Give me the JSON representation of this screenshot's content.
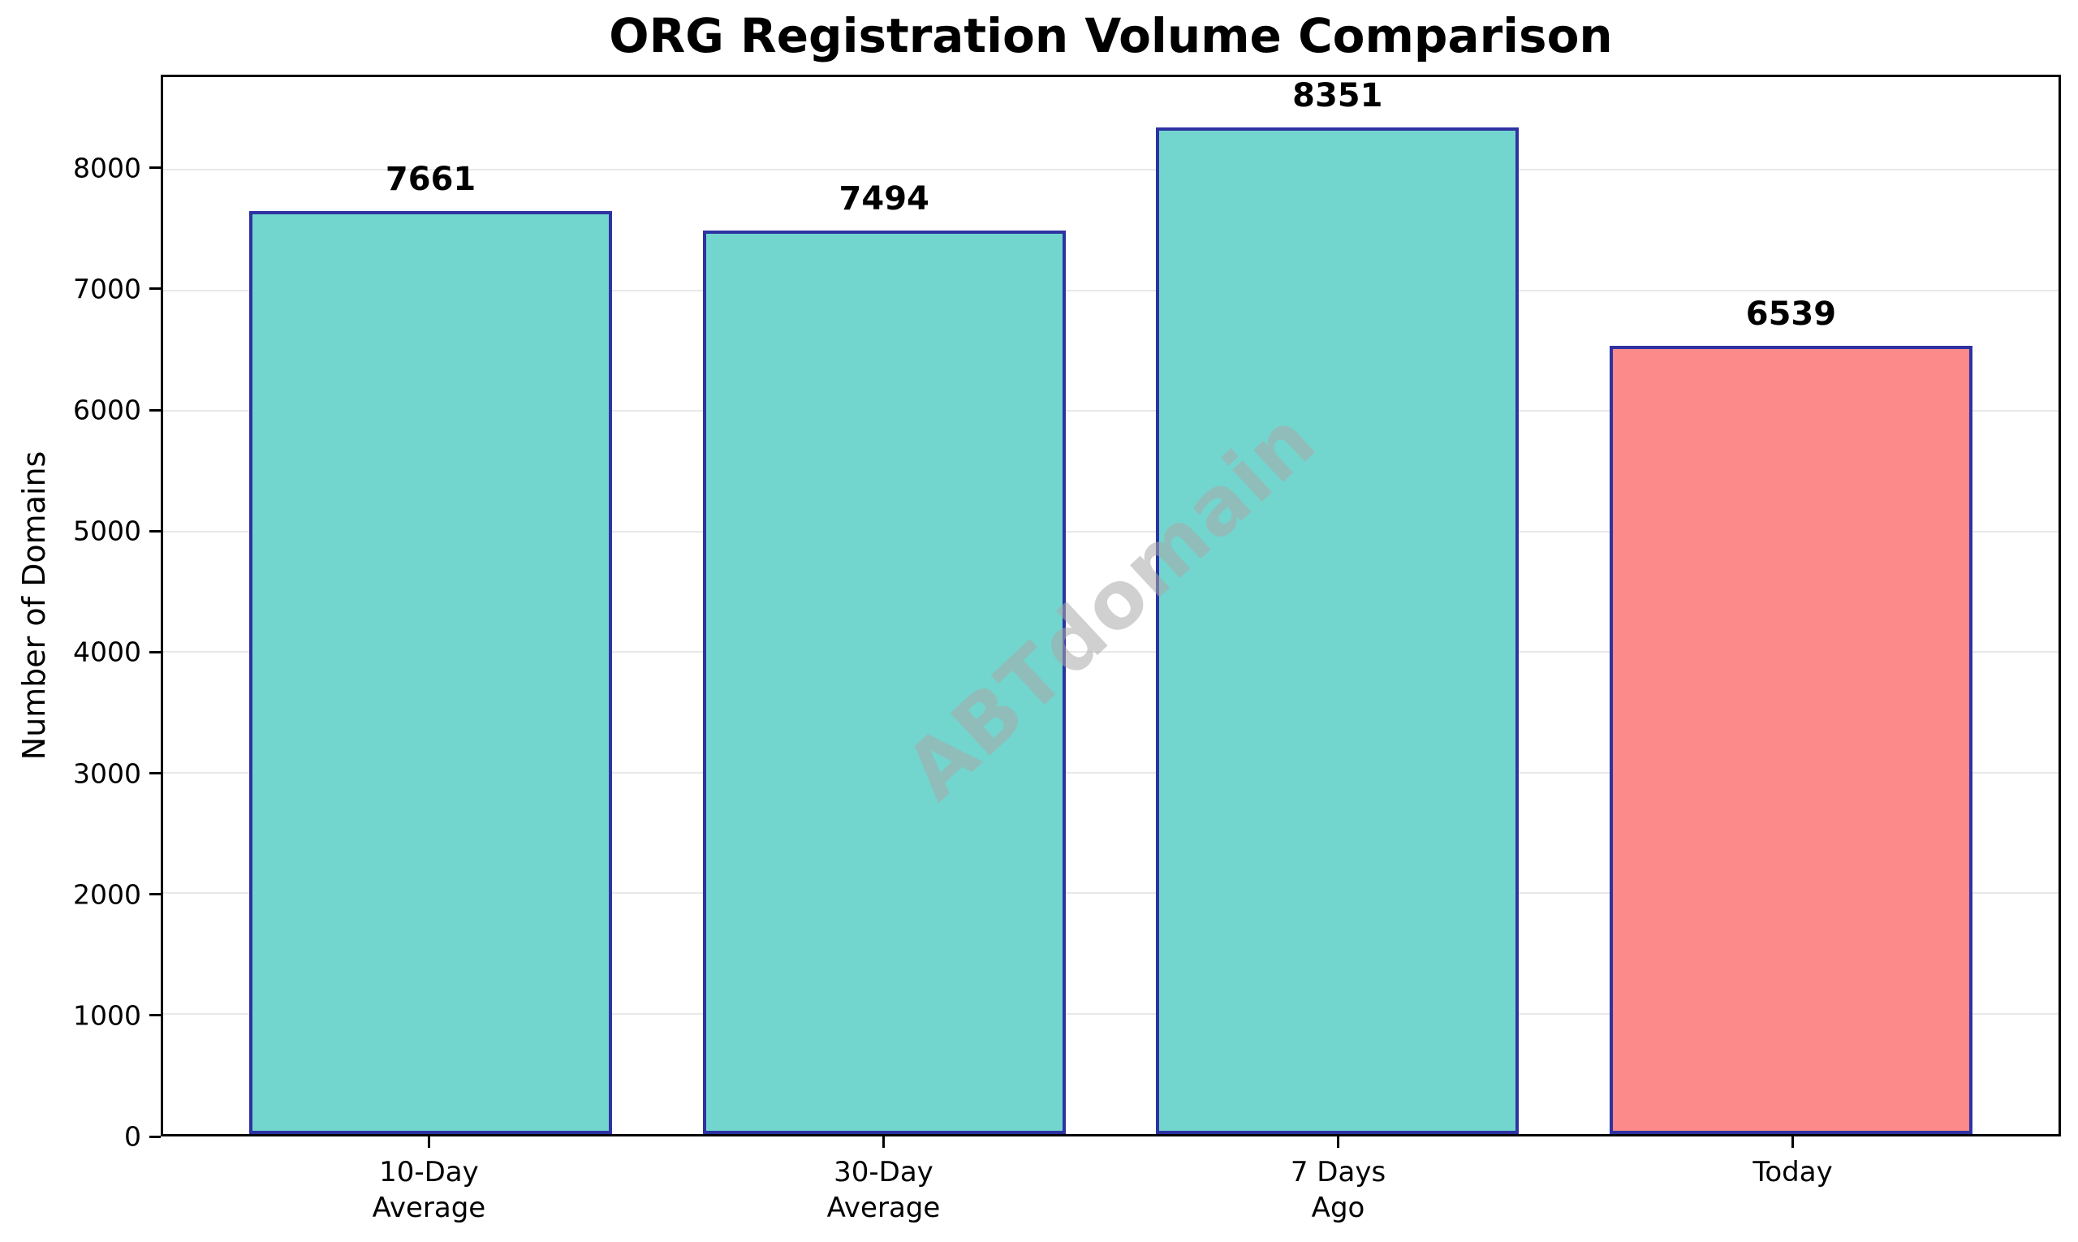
{
  "chart_data": {
    "type": "bar",
    "title": "ORG Registration Volume Comparison",
    "xlabel": "",
    "ylabel": "Number of Domains",
    "categories": [
      [
        "10-Day",
        "Average"
      ],
      [
        "30-Day",
        "Average"
      ],
      [
        "7 Days",
        "Ago"
      ],
      [
        "Today"
      ]
    ],
    "values": [
      7661,
      7494,
      8351,
      6539
    ],
    "bar_labels": [
      "7661",
      "7494",
      "8351",
      "6539"
    ],
    "bar_colors": [
      "#72D6CE",
      "#72D6CE",
      "#72D6CE",
      "#FC8A8A"
    ],
    "bar_edge_color": "#2E32A2",
    "ylim": [
      0,
      8769
    ],
    "yticks": [
      0,
      1000,
      2000,
      3000,
      4000,
      5000,
      6000,
      7000,
      8000
    ],
    "ytick_labels": [
      "0",
      "1000",
      "2000",
      "3000",
      "4000",
      "5000",
      "6000",
      "7000",
      "8000"
    ],
    "grid": "horizontal",
    "gridline_color": "#E8E8E8",
    "spine_color": "#000000",
    "text_color": "#000000",
    "legend": "none",
    "watermark": "ABTdomain",
    "watermark_color": "#AAAAAA"
  }
}
